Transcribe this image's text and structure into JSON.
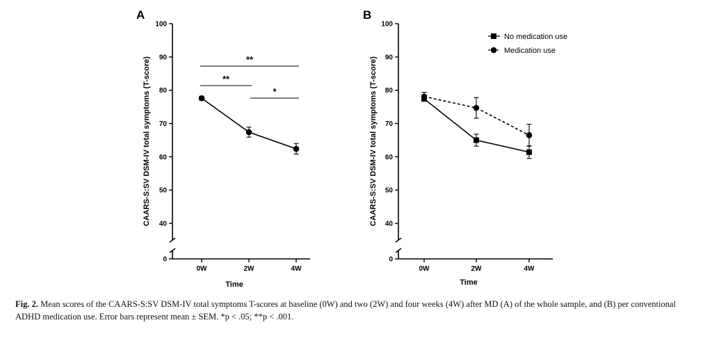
{
  "chart_data": [
    {
      "panel": "A",
      "type": "line",
      "xlabel": "Time",
      "ylabel": "CAARS-S:SV DSM-IV total symptoms (T-score)",
      "categories": [
        "0W",
        "2W",
        "4W"
      ],
      "ylim": [
        0,
        100
      ],
      "yticks": [
        "0",
        "40",
        "50",
        "60",
        "70",
        "80",
        "90",
        "100"
      ],
      "axis_break": [
        0,
        35
      ],
      "series": [
        {
          "name": "Whole sample",
          "marker": "circle",
          "dash": "solid",
          "values": [
            77.6,
            67.4,
            62.4
          ],
          "err": [
            0.6,
            1.5,
            1.6
          ]
        }
      ],
      "significance": [
        {
          "from": "0W",
          "to": "4W",
          "label": "**",
          "level": 1
        },
        {
          "from": "0W",
          "to": "2W",
          "label": "**",
          "level": 2
        },
        {
          "from": "2W",
          "to": "4W",
          "label": "*",
          "level": 3
        }
      ]
    },
    {
      "panel": "B",
      "type": "line",
      "xlabel": "Time",
      "ylabel": "CAARS-S:SV DSM-IV total symptoms (T-score)",
      "categories": [
        "0W",
        "2W",
        "4W"
      ],
      "ylim": [
        0,
        100
      ],
      "yticks": [
        "0",
        "40",
        "50",
        "60",
        "70",
        "80",
        "90",
        "100"
      ],
      "axis_break": [
        0,
        35
      ],
      "legend_position": "top-right",
      "series": [
        {
          "name": "No medication use",
          "marker": "square",
          "dash": "solid",
          "values": [
            77.4,
            65.0,
            61.4
          ],
          "err": [
            0.7,
            1.8,
            1.9
          ]
        },
        {
          "name": "Medication use",
          "marker": "circle",
          "dash": "dashed",
          "values": [
            78.1,
            74.7,
            66.5
          ],
          "err": [
            1.3,
            3.1,
            3.3
          ]
        }
      ]
    }
  ],
  "caption": {
    "label": "Fig. 2.",
    "text": " Mean scores of the CAARS-S:SV DSM-IV total symptoms T-scores at baseline (0W) and two (2W) and four weeks (4W) after MD (A) of the whole sample, and (B) per conventional ADHD medication use. Error bars represent mean ± SEM. *p < .05; **p < .001."
  }
}
